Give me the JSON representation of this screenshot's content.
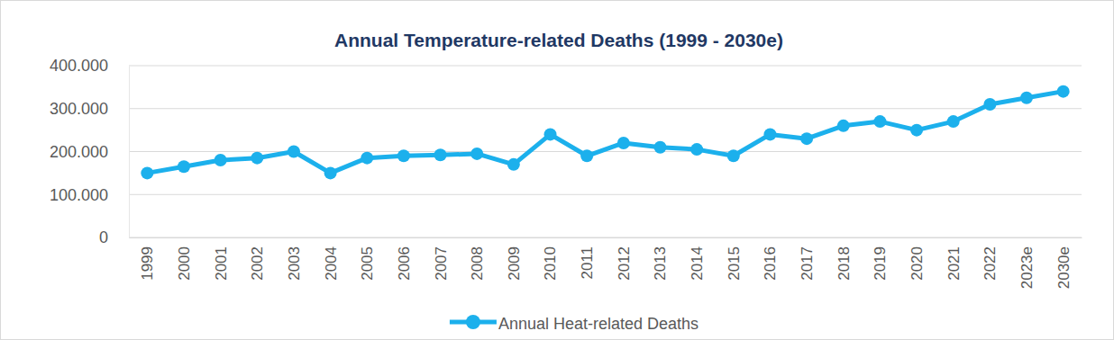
{
  "chart_data": {
    "type": "line",
    "title": "Annual Temperature-related Deaths (1999 - 2030e)",
    "categories": [
      "1999",
      "2000",
      "2001",
      "2002",
      "2003",
      "2004",
      "2005",
      "2006",
      "2007",
      "2008",
      "2009",
      "2010",
      "2011",
      "2012",
      "2013",
      "2014",
      "2015",
      "2016",
      "2017",
      "2018",
      "2019",
      "2020",
      "2021",
      "2022",
      "2023e",
      "2030e"
    ],
    "series": [
      {
        "name": "Annual Heat-related Deaths",
        "color": "#1cb0ec",
        "marker": "circle",
        "values": [
          150000,
          165000,
          180000,
          185000,
          200000,
          150000,
          185000,
          190000,
          192000,
          195000,
          170000,
          240000,
          190000,
          220000,
          210000,
          205000,
          190000,
          240000,
          230000,
          260000,
          270000,
          250000,
          270000,
          310000,
          325000,
          340000
        ]
      }
    ],
    "ylim": [
      0,
      400000
    ],
    "yticks": [
      0,
      {
        "value": 100000,
        "label": "100.000"
      },
      {
        "value": 200000,
        "label": "200.000"
      },
      {
        "value": 300000,
        "label": "300.000"
      },
      {
        "value": 400000,
        "label": "400.000"
      }
    ],
    "grid": true,
    "legend": "bottom"
  }
}
